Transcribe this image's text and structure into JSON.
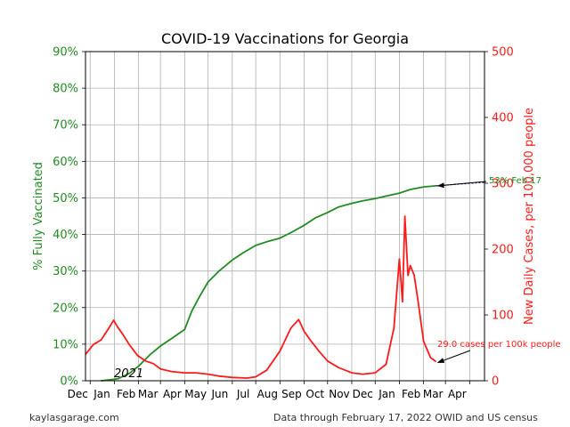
{
  "chart_data": {
    "type": "line",
    "title": "COVID-19 Vaccinations for Georgia",
    "ylabel": "% Fully Vaccinated",
    "y2label": "New Daily Cases, per 100,000 people",
    "year_label": "2021",
    "x_tick_labels": [
      "Dec",
      "Jan",
      "Feb",
      "Mar",
      "Apr",
      "May",
      "Jun",
      "Jul",
      "Aug",
      "Sep",
      "Oct",
      "Nov",
      "Dec",
      "Jan",
      "Feb",
      "Mar",
      "Apr"
    ],
    "y_ticks": [
      "0%",
      "10%",
      "20%",
      "30%",
      "40%",
      "50%",
      "60%",
      "70%",
      "80%",
      "90%"
    ],
    "y2_ticks": [
      "0",
      "100",
      "200",
      "300",
      "400",
      "500"
    ],
    "ylim": [
      0,
      90
    ],
    "y2lim": [
      0,
      500
    ],
    "xlim": [
      "2020-11-25",
      "2022-04-20"
    ],
    "grid": true,
    "colors": {
      "vaccinated": "#228b22",
      "cases": "#ff1a1a",
      "projection": "#000066"
    },
    "series": [
      {
        "axis": "left",
        "points": [
          [
            "2020-12-15",
            0
          ],
          [
            "2021-01-05",
            0.5
          ],
          [
            "2021-01-20",
            2
          ],
          [
            "2021-02-01",
            4
          ],
          [
            "2021-02-15",
            7
          ],
          [
            "2021-03-01",
            9.5
          ],
          [
            "2021-03-15",
            11.5
          ],
          [
            "2021-04-01",
            14
          ],
          [
            "2021-04-10",
            19
          ],
          [
            "2021-04-20",
            23
          ],
          [
            "2021-05-01",
            27
          ],
          [
            "2021-05-15",
            30
          ],
          [
            "2021-06-01",
            33
          ],
          [
            "2021-06-15",
            35
          ],
          [
            "2021-07-01",
            37
          ],
          [
            "2021-07-15",
            38
          ],
          [
            "2021-08-01",
            39
          ],
          [
            "2021-08-15",
            40.5
          ],
          [
            "2021-09-01",
            42.5
          ],
          [
            "2021-09-15",
            44.5
          ],
          [
            "2021-10-01",
            46
          ],
          [
            "2021-10-15",
            47.5
          ],
          [
            "2021-11-01",
            48.5
          ],
          [
            "2021-11-15",
            49.2
          ],
          [
            "2021-12-01",
            49.8
          ],
          [
            "2021-12-15",
            50.5
          ],
          [
            "2022-01-01",
            51.3
          ],
          [
            "2022-01-15",
            52.3
          ],
          [
            "2022-02-01",
            53
          ],
          [
            "2022-02-17",
            53.3
          ]
        ]
      },
      {
        "axis": "right",
        "points": [
          [
            "2020-11-25",
            40
          ],
          [
            "2020-12-05",
            55
          ],
          [
            "2020-12-15",
            62
          ],
          [
            "2020-12-25",
            80
          ],
          [
            "2020-12-31",
            92
          ],
          [
            "2021-01-05",
            82
          ],
          [
            "2021-01-12",
            70
          ],
          [
            "2021-01-20",
            55
          ],
          [
            "2021-01-31",
            38
          ],
          [
            "2021-02-10",
            30
          ],
          [
            "2021-02-20",
            26
          ],
          [
            "2021-03-01",
            18
          ],
          [
            "2021-03-15",
            14
          ],
          [
            "2021-04-01",
            12
          ],
          [
            "2021-04-15",
            12
          ],
          [
            "2021-05-01",
            10
          ],
          [
            "2021-05-15",
            7
          ],
          [
            "2021-06-01",
            5
          ],
          [
            "2021-06-20",
            4
          ],
          [
            "2021-07-01",
            6
          ],
          [
            "2021-07-15",
            16
          ],
          [
            "2021-08-01",
            45
          ],
          [
            "2021-08-15",
            80
          ],
          [
            "2021-08-25",
            93
          ],
          [
            "2021-09-01",
            75
          ],
          [
            "2021-09-10",
            60
          ],
          [
            "2021-09-20",
            45
          ],
          [
            "2021-10-01",
            30
          ],
          [
            "2021-10-15",
            20
          ],
          [
            "2021-11-01",
            12
          ],
          [
            "2021-11-15",
            10
          ],
          [
            "2021-12-01",
            12
          ],
          [
            "2021-12-15",
            25
          ],
          [
            "2021-12-25",
            80
          ],
          [
            "2022-01-01",
            185
          ],
          [
            "2022-01-05",
            120
          ],
          [
            "2022-01-08",
            250
          ],
          [
            "2022-01-12",
            160
          ],
          [
            "2022-01-15",
            175
          ],
          [
            "2022-01-20",
            160
          ],
          [
            "2022-01-25",
            120
          ],
          [
            "2022-02-01",
            60
          ],
          [
            "2022-02-10",
            35
          ],
          [
            "2022-02-17",
            29
          ]
        ]
      },
      {
        "axis": "left",
        "dashed": true,
        "points": [
          [
            "2022-02-17",
            53.3
          ],
          [
            "2022-04-20",
            54.3
          ]
        ]
      }
    ],
    "annotations": [
      {
        "text": "53% Feb 17",
        "color": "green",
        "arrow_to": [
          "2022-02-17",
          53.3
        ],
        "axis": "left"
      },
      {
        "text": "29.0 cases per 100k people",
        "color": "red",
        "arrow_to": [
          "2022-02-17",
          29
        ],
        "axis": "right"
      }
    ]
  },
  "footer": {
    "left": "kaylasgarage.com",
    "right": "Data through February 17, 2022 OWID and US census"
  }
}
